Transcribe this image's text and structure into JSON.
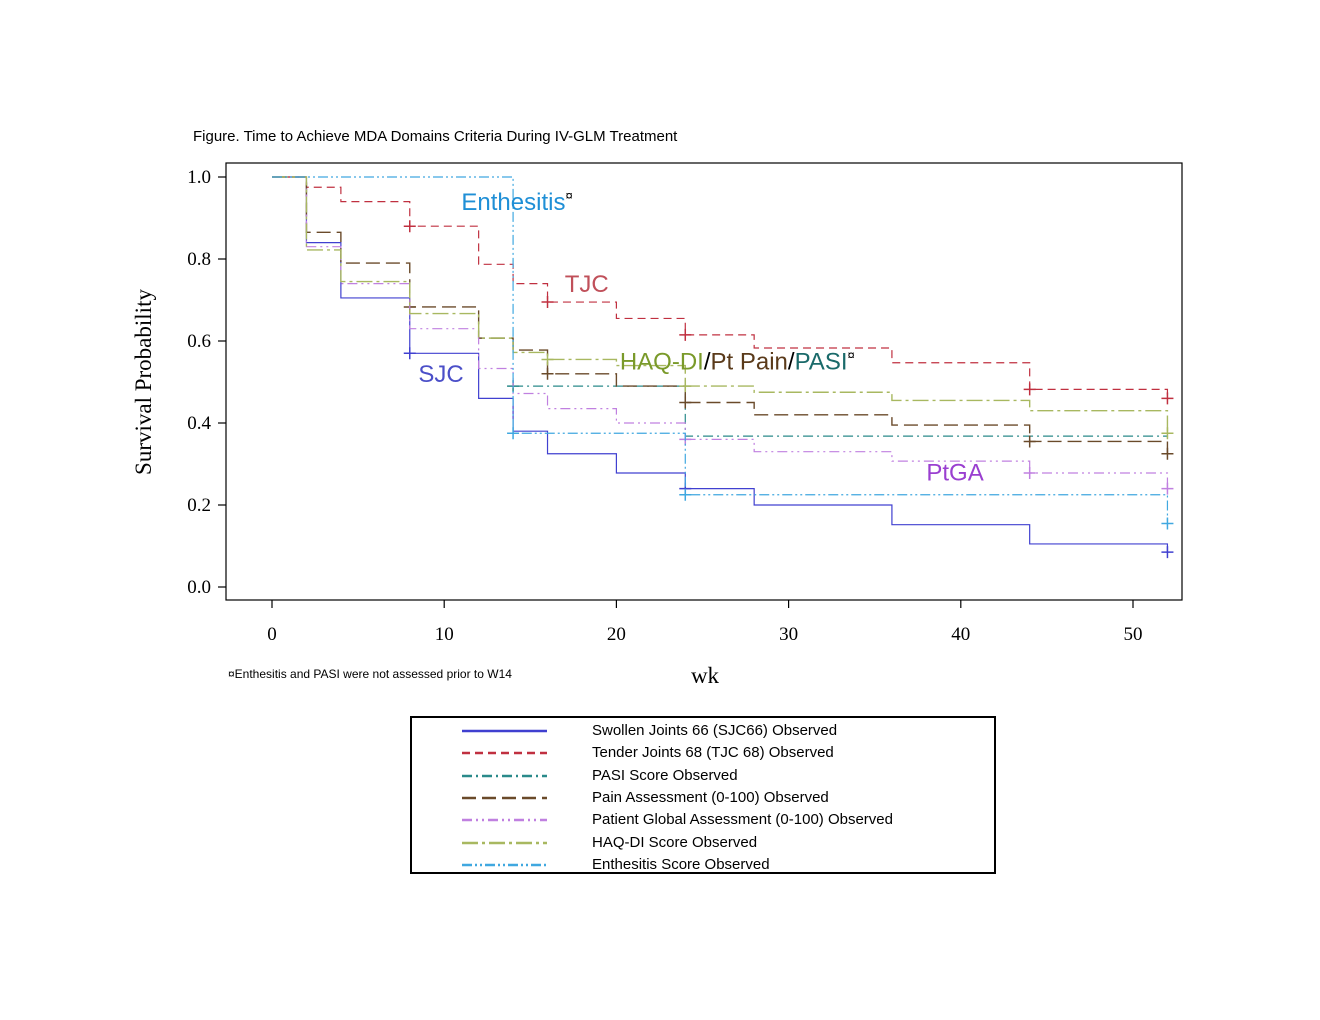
{
  "figure": {
    "title": "Figure. Time to Achieve MDA Domains Criteria During IV-GLM Treatment",
    "footnote": "¤Enthesitis and PASI were not assessed prior to W14"
  },
  "chart_data": {
    "type": "line",
    "xlabel": "wk",
    "ylabel": "Survival Probability",
    "xlim": [
      -2.5,
      53
    ],
    "ylim": [
      -0.03,
      1.03
    ],
    "x_ticks": [
      "0",
      "10",
      "20",
      "30",
      "40",
      "50"
    ],
    "y_ticks": [
      "0.0",
      "0.2",
      "0.4",
      "0.6",
      "0.8",
      "1.0"
    ],
    "annotations": [
      {
        "text": "Enthesitis",
        "color": "#1f8fd6",
        "sup": "¤",
        "x": 11,
        "y": 0.92
      },
      {
        "text": "TJC",
        "color": "#c0505a",
        "x": 17,
        "y": 0.72
      },
      {
        "text": "SJC",
        "color": "#4b4fc8",
        "x": 8.5,
        "y": 0.5
      },
      {
        "text": "PtGA",
        "color": "#9a3fd0",
        "x": 38,
        "y": 0.26
      }
    ],
    "haq_annotation": {
      "haq": "HAQ-DI",
      "haq_color": "#7a9a2a",
      "slash1": "/",
      "pt_pain": "Pt Pain",
      "pt_pain_color": "#5a3a1a",
      "slash2": "/",
      "pasi": "PASI",
      "pasi_color": "#1a6a6a",
      "sup": "¤",
      "x": 20.2,
      "y": 0.53
    },
    "series": [
      {
        "name": "Swollen Joints 66 (SJC66) Observed",
        "color": "#4040d0",
        "dash": "",
        "width": 1.2,
        "x": [
          0,
          2,
          4,
          8,
          12,
          14,
          16,
          20,
          24,
          28,
          36,
          44,
          52
        ],
        "y": [
          1.0,
          0.84,
          0.705,
          0.57,
          0.46,
          0.38,
          0.325,
          0.278,
          0.24,
          0.2,
          0.152,
          0.105,
          0.085
        ],
        "censor": [
          [
            8,
            0.57
          ],
          [
            24,
            0.24
          ],
          [
            52,
            0.085
          ]
        ]
      },
      {
        "name": "Tender Joints 68 (TJC 68) Observed",
        "color": "#c03040",
        "dash": "8 5",
        "width": 1.2,
        "x": [
          0,
          2,
          4,
          8,
          12,
          14,
          16,
          20,
          24,
          28,
          36,
          44,
          52
        ],
        "y": [
          1.0,
          0.975,
          0.94,
          0.88,
          0.787,
          0.74,
          0.695,
          0.655,
          0.615,
          0.583,
          0.547,
          0.482,
          0.46
        ],
        "censor": [
          [
            8,
            0.88
          ],
          [
            16,
            0.695
          ],
          [
            24,
            0.615
          ],
          [
            44,
            0.482
          ],
          [
            52,
            0.46
          ]
        ]
      },
      {
        "name": "PASI Score Observed",
        "color": "#2a8a8a",
        "dash": "10 4 2 4",
        "width": 1.2,
        "x": [
          14,
          24,
          52
        ],
        "y": [
          0.49,
          0.368,
          0.365
        ],
        "censor": [
          [
            14,
            0.49
          ]
        ]
      },
      {
        "name": "Pain Assessment (0-100) Observed",
        "color": "#6a4a2a",
        "dash": "14 6",
        "width": 1.4,
        "x": [
          0,
          2,
          4,
          8,
          12,
          14,
          16,
          20,
          24,
          28,
          36,
          44,
          52
        ],
        "y": [
          1.0,
          0.865,
          0.79,
          0.683,
          0.607,
          0.578,
          0.52,
          0.49,
          0.45,
          0.42,
          0.395,
          0.355,
          0.325
        ],
        "censor": [
          [
            8,
            0.683
          ],
          [
            16,
            0.52
          ],
          [
            24,
            0.45
          ],
          [
            44,
            0.355
          ],
          [
            52,
            0.325
          ]
        ]
      },
      {
        "name": "Patient Global Assessment (0-100) Observed",
        "color": "#c080e0",
        "dash": "10 4 2 4 2 4",
        "width": 1.2,
        "x": [
          0,
          2,
          4,
          8,
          12,
          14,
          16,
          20,
          24,
          28,
          36,
          44,
          52
        ],
        "y": [
          1.0,
          0.83,
          0.74,
          0.63,
          0.533,
          0.472,
          0.435,
          0.4,
          0.36,
          0.33,
          0.307,
          0.278,
          0.24
        ],
        "censor": [
          [
            24,
            0.36
          ],
          [
            44,
            0.278
          ],
          [
            52,
            0.24
          ]
        ]
      },
      {
        "name": "HAQ-DI Score Observed",
        "color": "#a8b860",
        "dash": "16 4 3 4",
        "width": 1.4,
        "x": [
          0,
          2,
          4,
          8,
          12,
          14,
          16,
          20,
          24,
          28,
          36,
          44,
          52
        ],
        "y": [
          1.0,
          0.822,
          0.745,
          0.667,
          0.607,
          0.572,
          0.555,
          0.54,
          0.49,
          0.475,
          0.455,
          0.43,
          0.375
        ],
        "censor": [
          [
            16,
            0.555
          ],
          [
            24,
            0.49
          ],
          [
            52,
            0.375
          ]
        ]
      },
      {
        "name": "Enthesitis Score Observed",
        "color": "#40a8e0",
        "dash": "10 3 2 3 2 3",
        "width": 1.2,
        "x": [
          0,
          14,
          24,
          52
        ],
        "y": [
          1.0,
          0.375,
          0.225,
          0.155
        ],
        "censor": [
          [
            14,
            0.375
          ],
          [
            24,
            0.225
          ],
          [
            52,
            0.155
          ]
        ]
      }
    ],
    "legend_position": "below"
  }
}
